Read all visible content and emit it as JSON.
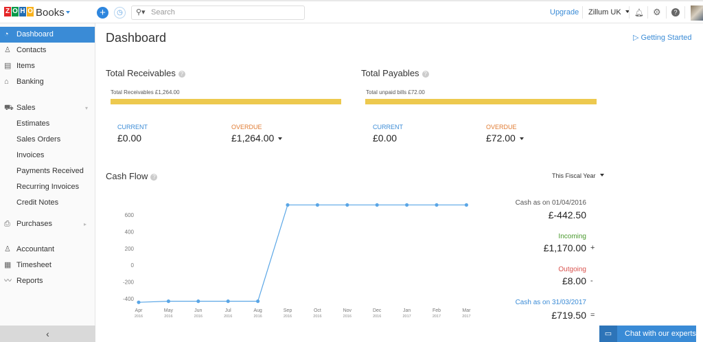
{
  "header": {
    "logo": "ZOHO",
    "app_name": "Books",
    "search_placeholder": "Search",
    "upgrade": "Upgrade",
    "org": "Zillum UK"
  },
  "sidebar": {
    "items": [
      {
        "label": "Dashboard",
        "icon": "dashboard-icon",
        "active": true
      },
      {
        "label": "Contacts",
        "icon": "contacts-icon"
      },
      {
        "label": "Items",
        "icon": "items-icon"
      },
      {
        "label": "Banking",
        "icon": "bank-icon"
      },
      {
        "label": "Sales",
        "icon": "cart-icon"
      },
      {
        "label": "Estimates"
      },
      {
        "label": "Sales Orders"
      },
      {
        "label": "Invoices"
      },
      {
        "label": "Payments Received"
      },
      {
        "label": "Recurring Invoices"
      },
      {
        "label": "Credit Notes"
      },
      {
        "label": "Purchases",
        "icon": "bag-icon"
      },
      {
        "label": "Accountant",
        "icon": "accountant-icon"
      },
      {
        "label": "Timesheet",
        "icon": "calendar-icon"
      },
      {
        "label": "Reports",
        "icon": "reports-icon"
      }
    ],
    "collapse": "‹"
  },
  "page": {
    "title": "Dashboard",
    "getting_started": "Getting Started"
  },
  "receivables": {
    "title": "Total Receivables",
    "bar_label": "Total Receivables £1,264.00",
    "current_label": "CURRENT",
    "current": "£0.00",
    "overdue_label": "OVERDUE",
    "overdue": "£1,264.00"
  },
  "payables": {
    "title": "Total Payables",
    "bar_label": "Total unpaid bills £72.00",
    "current_label": "CURRENT",
    "current": "£0.00",
    "overdue_label": "OVERDUE",
    "overdue": "£72.00"
  },
  "cashflow": {
    "title": "Cash Flow",
    "period": "This Fiscal Year",
    "opening_label": "Cash as on 01/04/2016",
    "opening": "£-442.50",
    "incoming_label": "Incoming",
    "incoming": "£1,170.00",
    "incoming_sign": "+",
    "outgoing_label": "Outgoing",
    "outgoing": "£8.00",
    "outgoing_sign": "-",
    "closing_label": "Cash as on 31/03/2017",
    "closing": "£719.50",
    "closing_sign": "="
  },
  "chart_data": {
    "type": "line",
    "categories": [
      "Apr 2016",
      "May 2016",
      "Jun 2016",
      "Jul 2016",
      "Aug 2016",
      "Sep 2016",
      "Oct 2016",
      "Nov 2016",
      "Dec 2016",
      "Jan 2017",
      "Feb 2017",
      "Mar 2017"
    ],
    "months": [
      "Apr",
      "May",
      "Jun",
      "Jul",
      "Aug",
      "Sep",
      "Oct",
      "Nov",
      "Dec",
      "Jan",
      "Feb",
      "Mar"
    ],
    "years": [
      "2016",
      "2016",
      "2016",
      "2016",
      "2016",
      "2016",
      "2016",
      "2016",
      "2016",
      "2017",
      "2017",
      "2017"
    ],
    "values": [
      -442.5,
      -430,
      -430,
      -430,
      -430,
      719.5,
      719.5,
      719.5,
      719.5,
      719.5,
      719.5,
      719.5
    ],
    "yticks": [
      600,
      400,
      200,
      0,
      -200,
      -400
    ],
    "ylim": [
      -450,
      750
    ],
    "grid": false,
    "color": "#5aa6e6"
  },
  "chat": {
    "label": "Chat with our experts"
  }
}
